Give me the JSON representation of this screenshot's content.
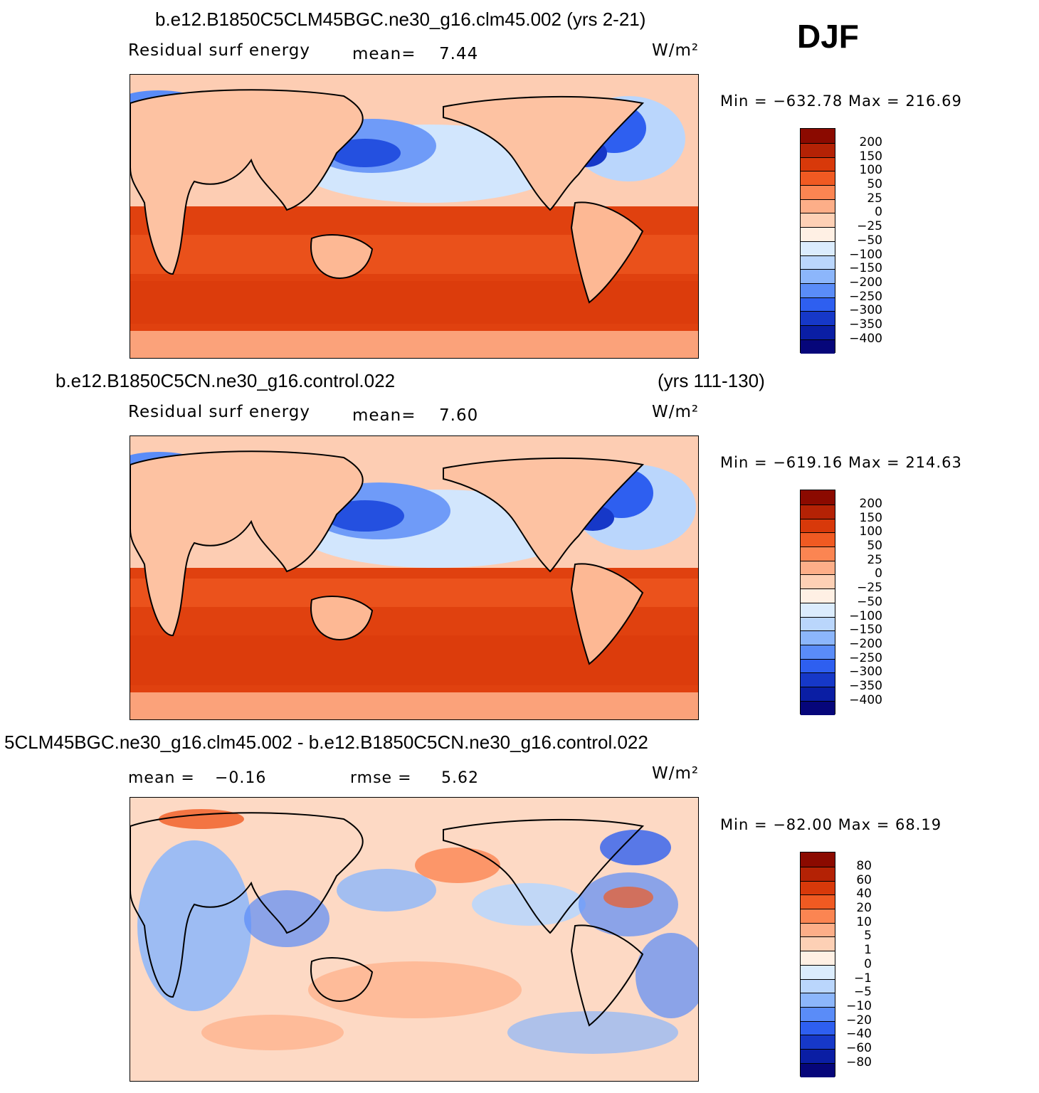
{
  "season": "DJF",
  "panels": [
    {
      "title": "b.e12.B1850C5CLM45BGC.ne30_g16.clm45.002 (yrs 2-21)",
      "title_right": "",
      "variable": "Residual  surf  energy",
      "mean_label": "mean=",
      "mean_value": "7.44",
      "units": "W/m²",
      "minmax": "Min  =  −632.78  Max  =  216.69",
      "levels": [
        "200",
        "150",
        "100",
        "50",
        "25",
        "0",
        "−25",
        "−50",
        "−100",
        "−150",
        "−200",
        "−250",
        "−300",
        "−350",
        "−400"
      ]
    },
    {
      "title": "b.e12.B1850C5CN.ne30_g16.control.022",
      "title_right": "(yrs 111-130)",
      "variable": "Residual  surf  energy",
      "mean_label": "mean=",
      "mean_value": "7.60",
      "units": "W/m²",
      "minmax": "Min  =  −619.16  Max  =  214.63",
      "levels": [
        "200",
        "150",
        "100",
        "50",
        "25",
        "0",
        "−25",
        "−50",
        "−100",
        "−150",
        "−200",
        "−250",
        "−300",
        "−350",
        "−400"
      ]
    },
    {
      "title": "5CLM45BGC.ne30_g16.clm45.002 - b.e12.B1850C5CN.ne30_g16.control.022",
      "mean_label": "mean  =",
      "mean_value": "−0.16",
      "rmse_label": "rmse  =",
      "rmse_value": "5.62",
      "units": "W/m²",
      "minmax": "Min  =  −82.00  Max  =   68.19",
      "levels": [
        "80",
        "60",
        "40",
        "20",
        "10",
        "5",
        "1",
        "0",
        "−1",
        "−5",
        "−10",
        "−20",
        "−40",
        "−60",
        "−80"
      ]
    }
  ],
  "colors": {
    "scale": [
      "#8b0a00",
      "#b42205",
      "#d8390a",
      "#f05a22",
      "#fb8552",
      "#fdae88",
      "#fdd0b5",
      "#fff0e4",
      "#dbecfd",
      "#bad6fc",
      "#8cb6fb",
      "#5a8cf8",
      "#2e5ff0",
      "#1638c8",
      "#0a1ea4",
      "#06067a"
    ]
  }
}
